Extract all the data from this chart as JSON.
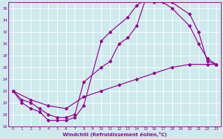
{
  "xlabel": "Windchill (Refroidissement éolien,°C)",
  "bg_color": "#ceeaed",
  "line_color": "#990099",
  "grid_color": "#ffffff",
  "xlim": [
    -0.5,
    23.5
  ],
  "ylim": [
    16,
    37
  ],
  "yticks": [
    16,
    18,
    20,
    22,
    24,
    26,
    28,
    30,
    32,
    34,
    36
  ],
  "xticks": [
    0,
    1,
    2,
    3,
    4,
    5,
    6,
    7,
    8,
    9,
    10,
    11,
    12,
    13,
    14,
    15,
    16,
    17,
    18,
    19,
    20,
    21,
    22,
    23
  ],
  "line1_x": [
    0,
    1,
    2,
    3,
    4,
    5,
    6,
    7,
    8,
    10,
    11,
    13,
    14,
    15,
    16,
    17,
    18,
    20,
    21,
    22,
    23
  ],
  "line1_y": [
    22,
    20,
    19,
    18.5,
    17,
    17,
    17,
    17.5,
    19.5,
    30.5,
    32,
    34.5,
    36.5,
    37.5,
    37.5,
    37.5,
    37,
    35,
    32,
    27,
    26.5
  ],
  "line2_x": [
    0,
    1,
    2,
    3,
    4,
    5,
    6,
    7,
    8,
    10,
    11,
    12,
    13,
    14,
    15,
    16,
    17,
    18,
    20,
    21,
    22,
    23
  ],
  "line2_y": [
    22,
    20.5,
    20,
    19,
    18,
    17.5,
    17.5,
    18,
    23.5,
    26,
    27,
    30,
    31,
    33,
    37.5,
    37,
    37,
    36,
    33,
    30,
    27.5,
    26.5
  ],
  "line3_x": [
    0,
    2,
    4,
    6,
    8,
    10,
    12,
    14,
    16,
    18,
    20,
    22,
    23
  ],
  "line3_y": [
    22,
    20.5,
    19.5,
    19,
    21,
    22,
    23,
    24,
    25,
    26,
    26.5,
    26.5,
    26.5
  ]
}
